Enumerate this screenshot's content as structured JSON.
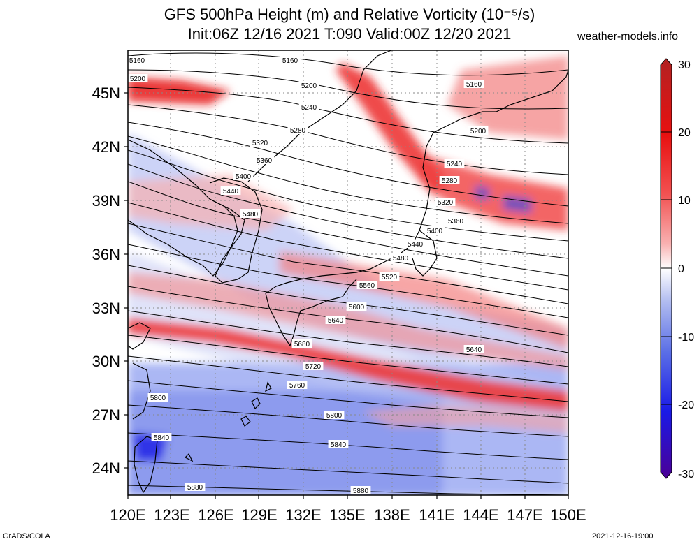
{
  "title_line1": "GFS 500hPa Height (m) and Relative Vorticity (10⁻⁵/s)",
  "title_line2": "Init:06Z 12/16 2021 T:090 Valid:00Z 12/20 2021",
  "site": "weather-models.info",
  "footer_left": "GrADS/COLA",
  "footer_right": "2021-12-16-19:00",
  "map": {
    "lon_range": [
      120,
      150
    ],
    "lat_range": [
      22.5,
      47.5
    ],
    "lon_ticks": [
      "120E",
      "123E",
      "126E",
      "129E",
      "132E",
      "135E",
      "138E",
      "141E",
      "144E",
      "147E",
      "150E"
    ],
    "lat_ticks": [
      "24N",
      "27N",
      "30N",
      "33N",
      "36N",
      "39N",
      "42N",
      "45N"
    ],
    "contour_labels": [
      "5160",
      "5160",
      "5160",
      "5200",
      "5200",
      "5200",
      "5240",
      "5240",
      "5280",
      "5280",
      "5320",
      "5320",
      "5360",
      "5360",
      "5400",
      "5400",
      "5440",
      "5440",
      "5480",
      "5480",
      "5520",
      "5560",
      "5600",
      "5640",
      "5640",
      "5680",
      "5720",
      "5760",
      "5800",
      "5800",
      "5840",
      "5840",
      "5880",
      "5880"
    ]
  },
  "colorbar": {
    "labels": [
      "30",
      "20",
      "10",
      "0",
      "-10",
      "-20",
      "-30"
    ],
    "colors_top_to_bottom": [
      "#b22222",
      "#e81010",
      "#f25050",
      "#f8a8a8",
      "#ffffff",
      "#a9b6f0",
      "#5a6ee6",
      "#1a1ae6",
      "#4b0096"
    ]
  }
}
